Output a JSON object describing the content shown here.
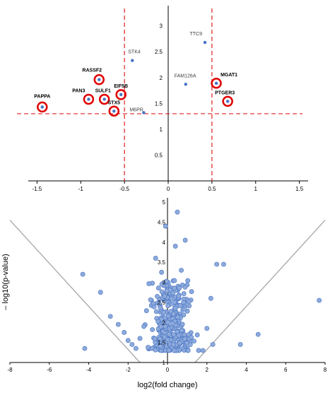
{
  "colors": {
    "point_fill": "#8eaadb",
    "point_stroke": "#4472c4",
    "highlight_ring": "#e00000",
    "threshold_line": "#e02020",
    "axis": "#000000",
    "funnel_line": "#a6a6a6",
    "text": "#000000",
    "gene_label_text": "#404040"
  },
  "chart_data": [
    {
      "type": "scatter",
      "title": "",
      "xlabel": "",
      "ylabel": "",
      "xlim": [
        -1.6,
        1.6
      ],
      "ylim": [
        0,
        3.2
      ],
      "x_ticks": [
        -1.5,
        -1,
        -0.5,
        0,
        0.5,
        1,
        1.5
      ],
      "x_tick_labels": [
        "-1.5",
        "-1",
        "-0.5",
        "0",
        "0.5",
        "1",
        "1.5"
      ],
      "y_ticks": [
        0.5,
        1,
        1.5,
        2,
        2.5,
        3
      ],
      "y_tick_labels": [
        "0.5",
        "1",
        "1.5",
        "2",
        "2.5",
        "3"
      ],
      "thresholds": {
        "x": [
          -0.5,
          0.5
        ],
        "y": 1.3
      },
      "points": [
        {
          "label": "TTC9",
          "x": 0.42,
          "y": 2.68,
          "highlighted": false
        },
        {
          "label": "STK4",
          "x": -0.41,
          "y": 2.33,
          "highlighted": false
        },
        {
          "label": "FAM126A",
          "x": 0.2,
          "y": 1.87,
          "highlighted": false
        },
        {
          "label": "RASSF2",
          "x": -0.79,
          "y": 1.96,
          "highlighted": true
        },
        {
          "label": "MGAT1",
          "x": 0.55,
          "y": 1.89,
          "highlighted": true
        },
        {
          "label": "EIF5B",
          "x": -0.54,
          "y": 1.67,
          "highlighted": true
        },
        {
          "label": "PAN3",
          "x": -0.91,
          "y": 1.58,
          "highlighted": true
        },
        {
          "label": "SULF1",
          "x": -0.73,
          "y": 1.58,
          "highlighted": true
        },
        {
          "label": "PTGER3",
          "x": 0.68,
          "y": 1.54,
          "highlighted": true
        },
        {
          "label": "PAPPA",
          "x": -1.44,
          "y": 1.43,
          "highlighted": true
        },
        {
          "label": "STX5",
          "x": -0.62,
          "y": 1.35,
          "highlighted": true
        },
        {
          "label": "M6PR",
          "x": -0.28,
          "y": 1.32,
          "highlighted": false
        }
      ]
    },
    {
      "type": "scatter",
      "title": "",
      "xlabel": "log2(fold change)",
      "ylabel": "– log10(p-value)",
      "xlim": [
        -8,
        8
      ],
      "ylim": [
        1,
        5
      ],
      "x_ticks": [
        -8,
        -6,
        -4,
        -2,
        0,
        2,
        4,
        6,
        8
      ],
      "x_tick_labels": [
        "-8",
        "-6",
        "-4",
        "-2",
        "0",
        "2",
        "4",
        "6",
        "8"
      ],
      "y_ticks": [
        1,
        1.5,
        2,
        2.5,
        3,
        3.5,
        4,
        4.5,
        5
      ],
      "y_tick_labels": [
        "1",
        "1.5",
        "2",
        "2.5",
        "3",
        "3.5",
        "4",
        "4.5",
        "5"
      ],
      "funnel_lines": [
        {
          "from": [
            -8,
            4.55
          ],
          "to": [
            -1.4,
            1
          ]
        },
        {
          "from": [
            1.4,
            1
          ],
          "to": [
            8,
            4.55
          ]
        }
      ],
      "outer_points": [
        {
          "x": -4.3,
          "y": 3.2
        },
        {
          "x": -3.4,
          "y": 2.75
        },
        {
          "x": -2.9,
          "y": 2.15
        },
        {
          "x": -2.5,
          "y": 1.95
        },
        {
          "x": -2.2,
          "y": 1.75
        },
        {
          "x": -2.0,
          "y": 1.55
        },
        {
          "x": -1.8,
          "y": 1.45
        },
        {
          "x": -1.6,
          "y": 1.35
        },
        {
          "x": -4.2,
          "y": 1.35
        },
        {
          "x": -1.4,
          "y": 1.6
        },
        {
          "x": -1.2,
          "y": 1.9
        },
        {
          "x": 2.5,
          "y": 3.45
        },
        {
          "x": 2.85,
          "y": 3.45
        },
        {
          "x": 2.2,
          "y": 2.6
        },
        {
          "x": 2.0,
          "y": 1.85
        },
        {
          "x": 2.3,
          "y": 1.45
        },
        {
          "x": 1.8,
          "y": 1.3
        },
        {
          "x": 3.7,
          "y": 1.45
        },
        {
          "x": 4.6,
          "y": 1.7
        },
        {
          "x": 7.7,
          "y": 2.55
        },
        {
          "x": -0.1,
          "y": 4.4
        },
        {
          "x": 0.5,
          "y": 4.75
        },
        {
          "x": 0.9,
          "y": 4.05
        },
        {
          "x": 0.4,
          "y": 3.9
        },
        {
          "x": -0.6,
          "y": 3.6
        },
        {
          "x": 0.7,
          "y": 3.3
        },
        {
          "x": -0.3,
          "y": 3.25
        }
      ],
      "central_cloud": {
        "count": 320,
        "x_range": [
          -1.3,
          1.7
        ],
        "y_range": [
          1.3,
          3.05
        ]
      }
    }
  ]
}
